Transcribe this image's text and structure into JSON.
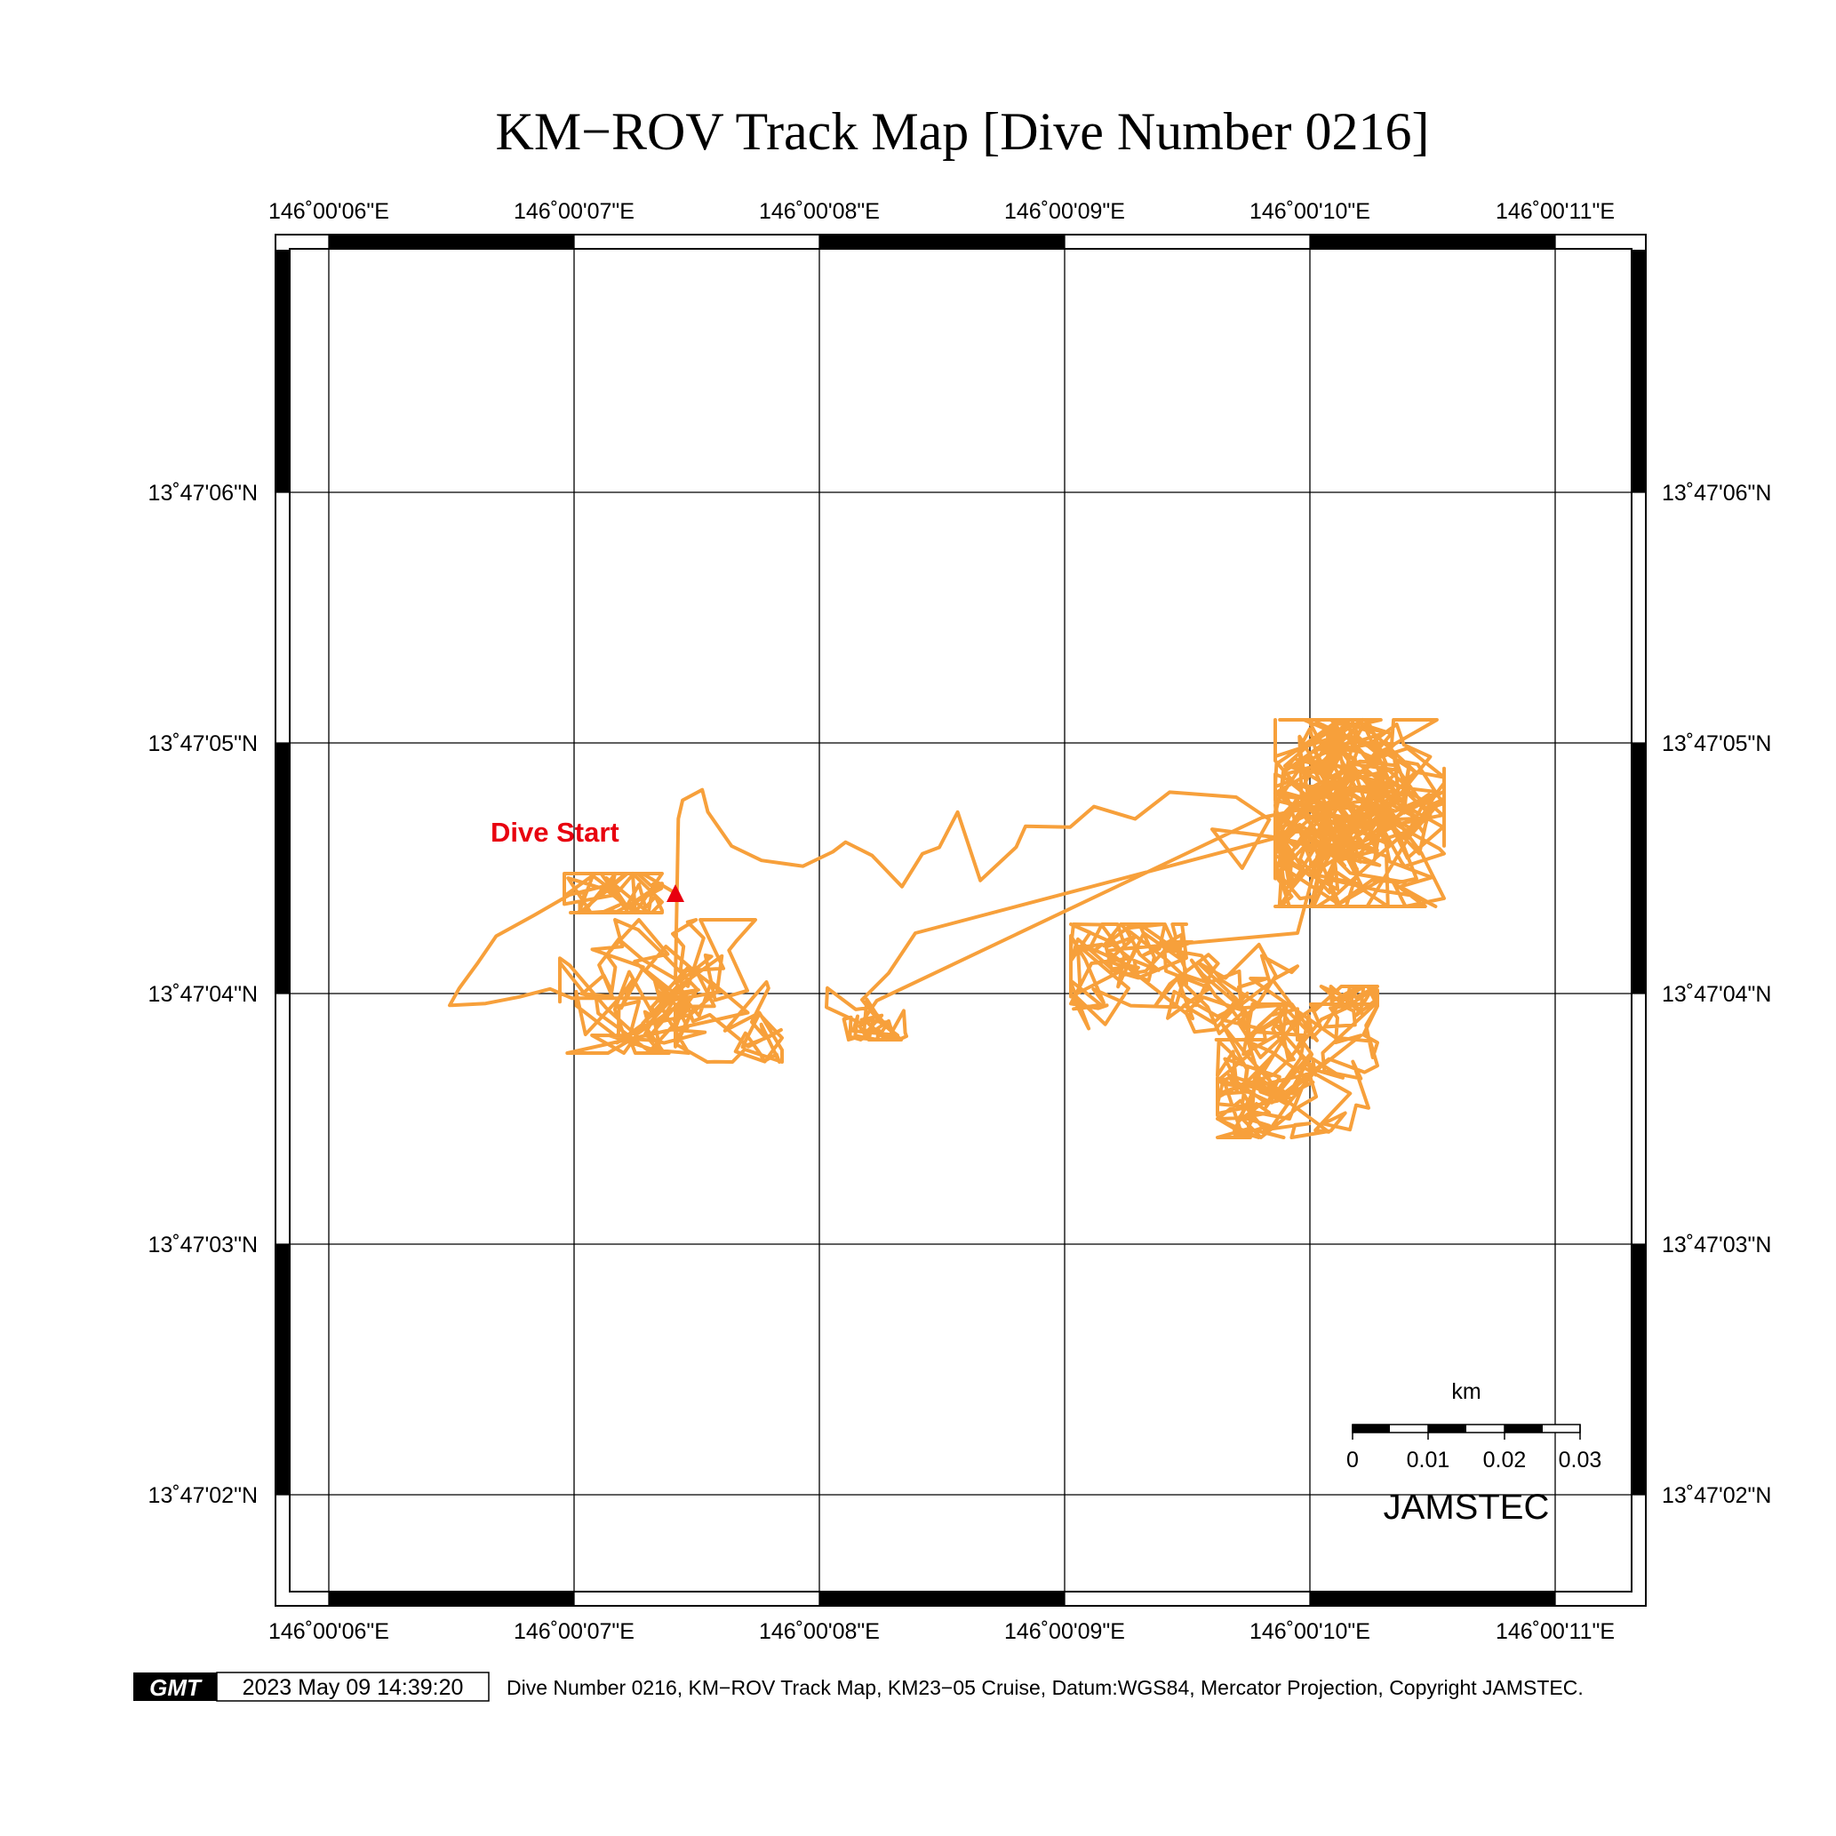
{
  "title": "KM−ROV Track Map [Dive Number 0216]",
  "map": {
    "lon_labels": [
      "146˚00'06\"E",
      "146˚00'07\"E",
      "146˚00'08\"E",
      "146˚00'09\"E",
      "146˚00'10\"E",
      "146˚00'11\"E"
    ],
    "lat_labels": [
      "13˚47'06\"N",
      "13˚47'05\"N",
      "13˚47'04\"N",
      "13˚47'03\"N",
      "13˚47'02\"N"
    ],
    "track_color": "#F7A03B",
    "start_marker_color": "#E8000F",
    "start_label": "Dive Start",
    "start_label_color": "#E8000F"
  },
  "scale_bar": {
    "unit": "km",
    "ticks": [
      "0",
      "0.01",
      "0.02",
      "0.03"
    ]
  },
  "watermark": "JAMSTEC",
  "footer": {
    "logo_text": "GMT",
    "timestamp": "2023 May 09 14:39:20",
    "caption": "Dive Number 0216, KM−ROV Track Map, KM23−05 Cruise, Datum:WGS84, Mercator Projection, Copyright JAMSTEC."
  }
}
